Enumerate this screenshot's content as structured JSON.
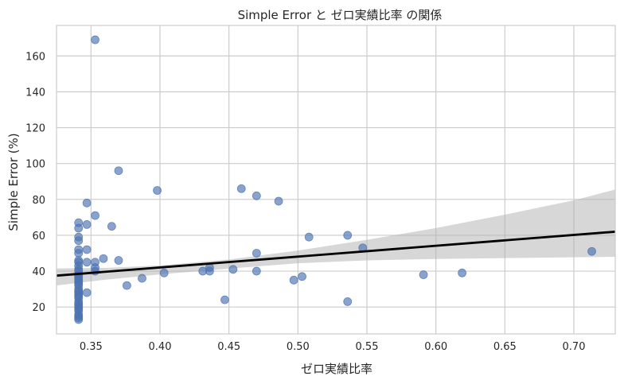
{
  "chart_data": {
    "type": "scatter",
    "title": "Simple Error と ゼロ実績比率 の関係",
    "xlabel": "ゼロ実績比率",
    "ylabel": "Simple Error (%)",
    "xlim": [
      0.325,
      0.73
    ],
    "ylim": [
      5,
      177
    ],
    "x_ticks": [
      0.35,
      0.4,
      0.45,
      0.5,
      0.55,
      0.6,
      0.65,
      0.7
    ],
    "x_tick_labels": [
      "0.35",
      "0.40",
      "0.45",
      "0.50",
      "0.55",
      "0.60",
      "0.65",
      "0.70"
    ],
    "y_ticks": [
      20,
      40,
      60,
      80,
      100,
      120,
      140,
      160
    ],
    "y_tick_labels": [
      "20",
      "40",
      "60",
      "80",
      "100",
      "120",
      "140",
      "160"
    ],
    "grid": true,
    "point_color": "#4c72b0",
    "band_color": "#b0b0b0",
    "line_color": "#000000",
    "points": [
      {
        "x": 0.341,
        "y": 67
      },
      {
        "x": 0.341,
        "y": 64
      },
      {
        "x": 0.341,
        "y": 59
      },
      {
        "x": 0.341,
        "y": 57
      },
      {
        "x": 0.341,
        "y": 52
      },
      {
        "x": 0.341,
        "y": 50
      },
      {
        "x": 0.341,
        "y": 46
      },
      {
        "x": 0.341,
        "y": 45
      },
      {
        "x": 0.341,
        "y": 43
      },
      {
        "x": 0.341,
        "y": 41
      },
      {
        "x": 0.341,
        "y": 40
      },
      {
        "x": 0.341,
        "y": 38
      },
      {
        "x": 0.341,
        "y": 37
      },
      {
        "x": 0.341,
        "y": 36
      },
      {
        "x": 0.341,
        "y": 35
      },
      {
        "x": 0.341,
        "y": 34
      },
      {
        "x": 0.341,
        "y": 33
      },
      {
        "x": 0.341,
        "y": 32
      },
      {
        "x": 0.341,
        "y": 30
      },
      {
        "x": 0.341,
        "y": 29
      },
      {
        "x": 0.341,
        "y": 28
      },
      {
        "x": 0.341,
        "y": 27
      },
      {
        "x": 0.341,
        "y": 26
      },
      {
        "x": 0.341,
        "y": 25
      },
      {
        "x": 0.341,
        "y": 23
      },
      {
        "x": 0.341,
        "y": 22
      },
      {
        "x": 0.341,
        "y": 21
      },
      {
        "x": 0.341,
        "y": 20
      },
      {
        "x": 0.341,
        "y": 19
      },
      {
        "x": 0.341,
        "y": 18
      },
      {
        "x": 0.341,
        "y": 16
      },
      {
        "x": 0.341,
        "y": 15
      },
      {
        "x": 0.341,
        "y": 14
      },
      {
        "x": 0.341,
        "y": 13
      },
      {
        "x": 0.347,
        "y": 78
      },
      {
        "x": 0.347,
        "y": 66
      },
      {
        "x": 0.347,
        "y": 52
      },
      {
        "x": 0.347,
        "y": 45
      },
      {
        "x": 0.347,
        "y": 28
      },
      {
        "x": 0.353,
        "y": 169
      },
      {
        "x": 0.353,
        "y": 71
      },
      {
        "x": 0.353,
        "y": 45
      },
      {
        "x": 0.353,
        "y": 42
      },
      {
        "x": 0.353,
        "y": 40
      },
      {
        "x": 0.359,
        "y": 47
      },
      {
        "x": 0.365,
        "y": 65
      },
      {
        "x": 0.37,
        "y": 96
      },
      {
        "x": 0.37,
        "y": 46
      },
      {
        "x": 0.376,
        "y": 32
      },
      {
        "x": 0.387,
        "y": 36
      },
      {
        "x": 0.398,
        "y": 85
      },
      {
        "x": 0.403,
        "y": 39
      },
      {
        "x": 0.431,
        "y": 40
      },
      {
        "x": 0.436,
        "y": 42
      },
      {
        "x": 0.436,
        "y": 40
      },
      {
        "x": 0.447,
        "y": 24
      },
      {
        "x": 0.453,
        "y": 41
      },
      {
        "x": 0.459,
        "y": 86
      },
      {
        "x": 0.47,
        "y": 82
      },
      {
        "x": 0.47,
        "y": 50
      },
      {
        "x": 0.47,
        "y": 40
      },
      {
        "x": 0.486,
        "y": 79
      },
      {
        "x": 0.497,
        "y": 35
      },
      {
        "x": 0.503,
        "y": 37
      },
      {
        "x": 0.508,
        "y": 59
      },
      {
        "x": 0.536,
        "y": 60
      },
      {
        "x": 0.536,
        "y": 23
      },
      {
        "x": 0.547,
        "y": 53
      },
      {
        "x": 0.591,
        "y": 38
      },
      {
        "x": 0.619,
        "y": 39
      },
      {
        "x": 0.713,
        "y": 51
      }
    ],
    "regression": {
      "start": [
        0.325,
        37.5
      ],
      "end": [
        0.73,
        62
      ]
    },
    "confidence_band": {
      "x": [
        0.325,
        0.36,
        0.4,
        0.45,
        0.5,
        0.55,
        0.6,
        0.65,
        0.7,
        0.73
      ],
      "upper": [
        41.5,
        41.8,
        43.2,
        46.5,
        51.5,
        57.5,
        64.0,
        71.5,
        79.5,
        85.5
      ],
      "lower": [
        32.0,
        35.2,
        38.2,
        41.4,
        44.4,
        46.0,
        46.8,
        47.3,
        47.7,
        48.0
      ]
    }
  }
}
